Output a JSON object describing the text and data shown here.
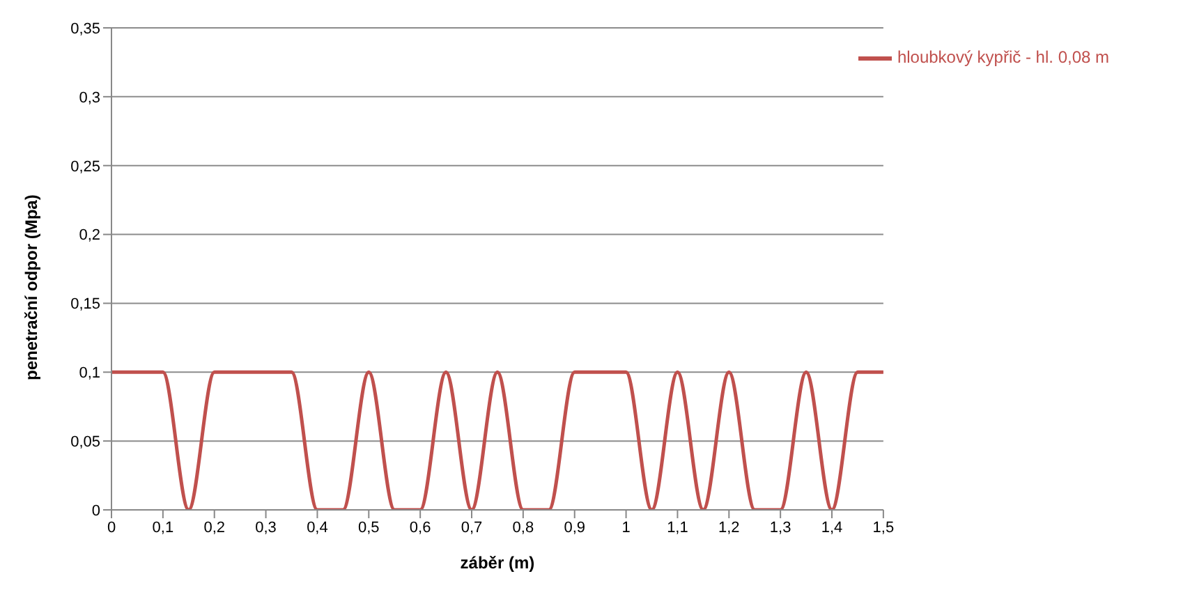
{
  "chart_data": {
    "type": "line",
    "xlabel": "záběr (m)",
    "ylabel": "penetrační odpor (Mpa)",
    "x": [
      0,
      0.05,
      0.1,
      0.15,
      0.2,
      0.25,
      0.3,
      0.35,
      0.4,
      0.45,
      0.5,
      0.55,
      0.6,
      0.65,
      0.7,
      0.75,
      0.8,
      0.85,
      0.9,
      0.95,
      1,
      1.05,
      1.1,
      1.15,
      1.2,
      1.25,
      1.3,
      1.35,
      1.4,
      1.45,
      1.5
    ],
    "series": [
      {
        "name": "hloubkový kypřič - hl. 0,08 m",
        "color": "#c0504d",
        "values": [
          0.1,
          0.1,
          0.1,
          0,
          0.1,
          0.1,
          0.1,
          0.1,
          0,
          0,
          0.1,
          0,
          0,
          0.1,
          0,
          0.1,
          0,
          0,
          0.1,
          0.1,
          0.1,
          0,
          0.1,
          0,
          0.1,
          0,
          0,
          0.1,
          0,
          0.1,
          0.1
        ]
      }
    ],
    "xlim": [
      0,
      1.5
    ],
    "ylim": [
      0,
      0.35
    ],
    "xticks": [
      0,
      {
        "value": 0.1,
        "label": "0,1"
      },
      {
        "value": 0.2,
        "label": "0,2"
      },
      {
        "value": 0.3,
        "label": "0,3"
      },
      {
        "value": 0.4,
        "label": "0,4"
      },
      {
        "value": 0.5,
        "label": "0,5"
      },
      {
        "value": 0.6,
        "label": "0,6"
      },
      {
        "value": 0.7,
        "label": "0,7"
      },
      {
        "value": 0.8,
        "label": "0,8"
      },
      {
        "value": 0.9,
        "label": "0,9"
      },
      1,
      {
        "value": 1.1,
        "label": "1,1"
      },
      {
        "value": 1.2,
        "label": "1,2"
      },
      {
        "value": 1.3,
        "label": "1,3"
      },
      {
        "value": 1.4,
        "label": "1,4"
      },
      {
        "value": 1.5,
        "label": "1,5"
      }
    ],
    "yticks": [
      0,
      {
        "value": 0.05,
        "label": "0,05"
      },
      {
        "value": 0.1,
        "label": "0,1"
      },
      {
        "value": 0.15,
        "label": "0,15"
      },
      {
        "value": 0.2,
        "label": "0,2"
      },
      {
        "value": 0.25,
        "label": "0,25"
      },
      {
        "value": 0.3,
        "label": "0,3"
      },
      {
        "value": 0.35,
        "label": "0,35"
      }
    ],
    "grid": "y",
    "legend": "top right",
    "marker": "none",
    "line_style": "solid"
  }
}
